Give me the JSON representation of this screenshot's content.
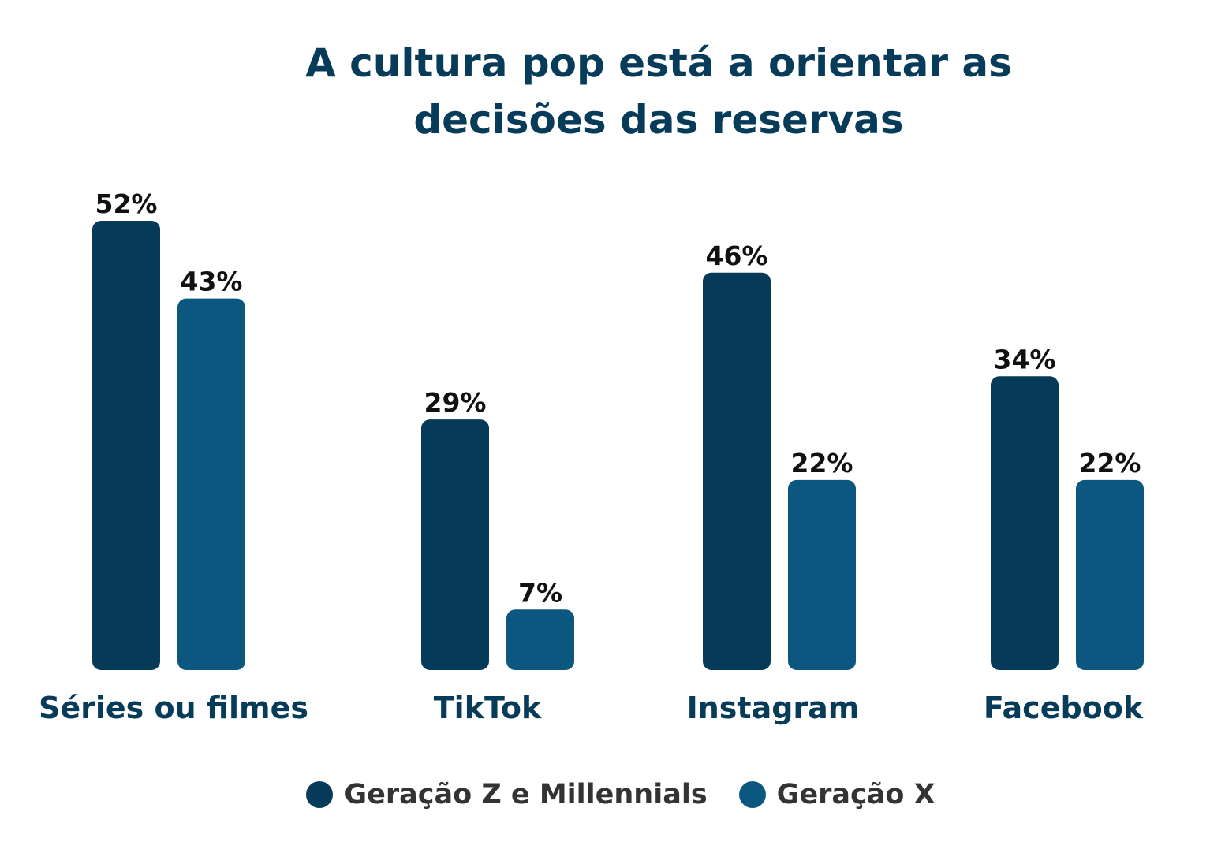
{
  "chart_data": {
    "type": "bar",
    "title_lines": [
      "A cultura pop está a orientar as",
      "decisões das reservas"
    ],
    "categories": [
      "Séries ou filmes",
      "TikTok",
      "Instagram",
      "Facebook"
    ],
    "series": [
      {
        "name": "Geração Z e Millennials",
        "color": "#053a59",
        "values": [
          52,
          29,
          46,
          34
        ],
        "labels": [
          "52%",
          "29%",
          "46%",
          "34%"
        ]
      },
      {
        "name": "Geração X",
        "color": "#0b577f",
        "values": [
          43,
          7,
          22,
          22
        ],
        "labels": [
          "43%",
          "7%",
          "22%",
          "22%"
        ]
      }
    ],
    "ylim": [
      0,
      52
    ],
    "grid": false,
    "legend_position": "bottom"
  }
}
